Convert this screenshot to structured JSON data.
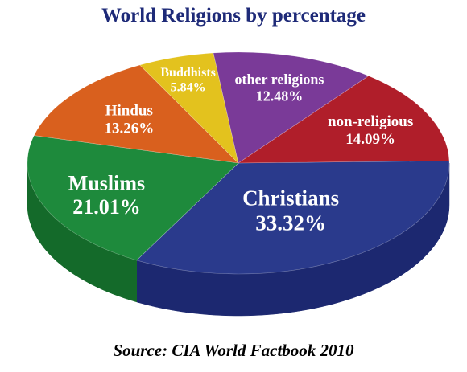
{
  "chart_data": {
    "type": "pie",
    "title": "World Religions by percentage",
    "source": "Source: CIA World Factbook 2010",
    "slices": [
      {
        "label": "Christians",
        "value_text": "33.32%",
        "value": 33.32,
        "color": "#2a3a8c",
        "side_color": "#1c2870"
      },
      {
        "label": "Muslims",
        "value_text": "21.01%",
        "value": 21.01,
        "color": "#1e8a3c",
        "side_color": "#146a2a"
      },
      {
        "label": "Hindus",
        "value_text": "13.26%",
        "value": 13.26,
        "color": "#d9601e",
        "side_color": "#a84814"
      },
      {
        "label": "Buddhists",
        "value_text": "5.84%",
        "value": 5.84,
        "color": "#e3c21e",
        "side_color": "#b39612"
      },
      {
        "label": "other religions",
        "value_text": "12.48%",
        "value": 12.48,
        "color": "#7a3a98",
        "side_color": "#5a2a72"
      },
      {
        "label": "non-religious",
        "value_text": "14.09%",
        "value": 14.09,
        "color": "#b01e2a",
        "side_color": "#861620"
      }
    ]
  }
}
